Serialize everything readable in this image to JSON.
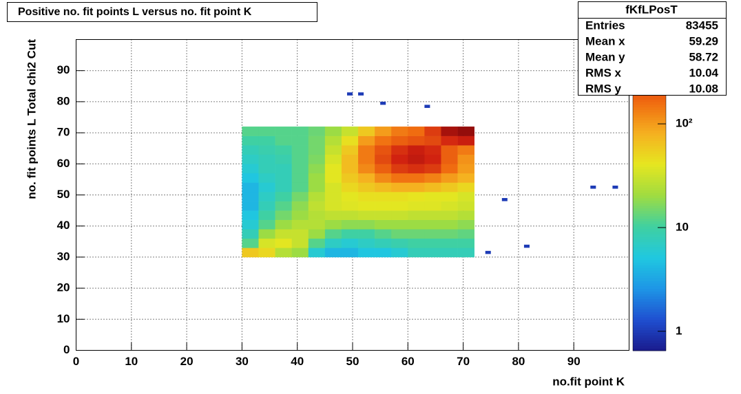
{
  "chart_data": {
    "type": "heatmap",
    "title": "Positive no. fit points L versus no. fit point K",
    "x_label": "no.fit point K",
    "y_label": "no. fit points  L   Total chi2 Cut",
    "xlim": [
      0,
      100
    ],
    "ylim": [
      0,
      100
    ],
    "xticks": [
      0,
      10,
      20,
      30,
      40,
      50,
      60,
      70,
      80,
      90
    ],
    "yticks": [
      0,
      10,
      20,
      30,
      40,
      50,
      60,
      70,
      80,
      90
    ],
    "grid": true,
    "zlim": [
      0.65,
      650
    ],
    "zscale": "log",
    "zticks": [
      1,
      10,
      {
        "value": 100,
        "label": "10²"
      }
    ],
    "palette": [
      "#1a1a8c",
      "#1f4fd0",
      "#1e96e6",
      "#20c8e0",
      "#40d0a0",
      "#a0dc40",
      "#e6e620",
      "#f5b020",
      "#f06a10",
      "#d02010",
      "#8c0a0a"
    ],
    "x_bins": [
      30,
      33,
      36,
      39,
      42,
      45,
      48,
      51,
      54,
      57,
      60,
      63,
      66,
      69,
      72
    ],
    "y_bins": [
      30,
      33,
      36,
      39,
      42,
      45,
      48,
      51,
      54,
      57,
      60,
      63,
      66,
      69,
      72
    ],
    "z": [
      [
        60,
        50,
        25,
        20,
        6,
        4,
        4,
        5,
        5,
        6,
        8,
        8,
        8,
        8
      ],
      [
        12,
        35,
        40,
        30,
        12,
        7,
        6,
        7,
        8,
        9,
        10,
        10,
        10,
        10
      ],
      [
        8,
        20,
        30,
        30,
        20,
        12,
        10,
        10,
        12,
        14,
        14,
        14,
        14,
        13
      ],
      [
        6,
        12,
        20,
        25,
        25,
        20,
        18,
        18,
        20,
        20,
        20,
        20,
        20,
        18
      ],
      [
        5,
        10,
        15,
        20,
        25,
        28,
        28,
        30,
        30,
        30,
        28,
        28,
        28,
        25
      ],
      [
        4,
        8,
        12,
        18,
        28,
        35,
        38,
        40,
        40,
        40,
        38,
        38,
        35,
        32
      ],
      [
        4,
        7,
        10,
        15,
        25,
        35,
        40,
        45,
        45,
        45,
        42,
        40,
        40,
        35
      ],
      [
        4,
        6,
        8,
        12,
        20,
        35,
        50,
        60,
        70,
        80,
        80,
        70,
        60,
        50
      ],
      [
        5,
        7,
        8,
        12,
        20,
        40,
        60,
        80,
        120,
        150,
        150,
        130,
        100,
        80
      ],
      [
        6,
        8,
        8,
        12,
        18,
        40,
        70,
        120,
        180,
        250,
        280,
        250,
        160,
        100
      ],
      [
        7,
        8,
        9,
        12,
        16,
        35,
        70,
        140,
        220,
        320,
        380,
        320,
        180,
        110
      ],
      [
        8,
        9,
        10,
        12,
        15,
        30,
        60,
        140,
        200,
        280,
        350,
        300,
        180,
        140
      ],
      [
        10,
        10,
        12,
        12,
        15,
        25,
        45,
        100,
        150,
        180,
        200,
        220,
        300,
        350
      ],
      [
        12,
        12,
        12,
        12,
        14,
        20,
        30,
        60,
        100,
        140,
        160,
        250,
        500,
        600
      ]
    ],
    "sparse_x": [
      49,
      51,
      55,
      63,
      77,
      74,
      81,
      93,
      97
    ],
    "sparse_y": [
      82,
      82,
      79,
      78,
      48,
      31,
      33,
      52,
      52
    ],
    "sparse_values": [
      1,
      1,
      1,
      1,
      1,
      1,
      1,
      1,
      1
    ],
    "stats": {
      "title": "fKfLPosT",
      "rows": [
        [
          "Entries",
          "83455"
        ],
        [
          "Mean x",
          "59.29"
        ],
        [
          "Mean y",
          "58.72"
        ],
        [
          "RMS x",
          "10.04"
        ],
        [
          "RMS y",
          "10.08"
        ]
      ]
    }
  }
}
